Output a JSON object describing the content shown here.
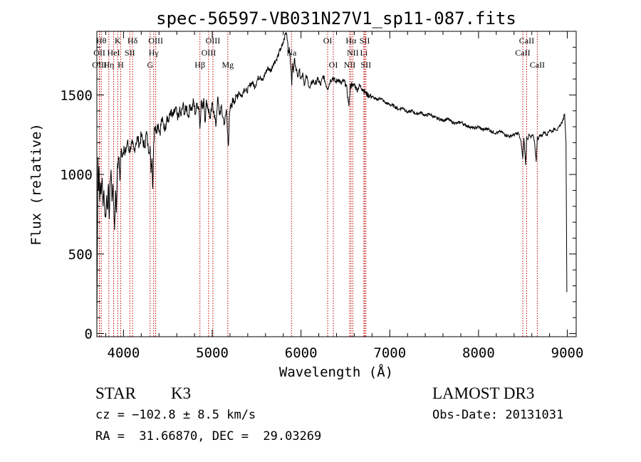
{
  "chart_data": {
    "type": "line",
    "title": "spec-56597-VB031N27V1_sp11-087.fits",
    "xlabel": "Wavelength (Å)",
    "ylabel": "Flux (relative)",
    "xlim": [
      3700,
      9100
    ],
    "ylim": [
      -20,
      1900
    ],
    "xticks": [
      4000,
      5000,
      6000,
      7000,
      8000,
      9000
    ],
    "yticks": [
      0,
      500,
      1000,
      1500
    ],
    "xtick_labels": [
      "4000",
      "5000",
      "6000",
      "7000",
      "8000",
      "9000"
    ],
    "ytick_labels": [
      "0",
      "500",
      "1000",
      "1500"
    ],
    "series": [
      {
        "x": [
          3700,
          3705,
          3712,
          3718,
          3725,
          3732,
          3740,
          3750,
          3760,
          3770,
          3780,
          3790,
          3800,
          3810,
          3820,
          3830,
          3840,
          3850,
          3860,
          3870,
          3880,
          3890,
          3900,
          3910,
          3920,
          3930,
          3940,
          3950,
          3960,
          3968,
          3975,
          3985,
          3995,
          4005,
          4015,
          4030,
          4045,
          4060,
          4080,
          4100,
          4120,
          4140,
          4160,
          4180,
          4200,
          4220,
          4240,
          4260,
          4280,
          4300,
          4310,
          4320,
          4330,
          4340,
          4350,
          4370,
          4390,
          4410,
          4430,
          4450,
          4470,
          4490,
          4510,
          4530,
          4550,
          4570,
          4590,
          4610,
          4630,
          4650,
          4670,
          4690,
          4710,
          4730,
          4750,
          4770,
          4790,
          4810,
          4830,
          4850,
          4861,
          4875,
          4890,
          4905,
          4920,
          4935,
          4950,
          4965,
          4980,
          5000,
          5020,
          5040,
          5060,
          5080,
          5100,
          5120,
          5140,
          5160,
          5175,
          5183,
          5190,
          5200,
          5220,
          5240,
          5260,
          5280,
          5300,
          5330,
          5360,
          5390,
          5420,
          5450,
          5480,
          5510,
          5540,
          5570,
          5600,
          5630,
          5660,
          5690,
          5720,
          5750,
          5770,
          5790,
          5810,
          5825,
          5840,
          5850,
          5860,
          5870,
          5880,
          5890,
          5896,
          5905,
          5915,
          5925,
          5940,
          5960,
          5980,
          6000,
          6020,
          6040,
          6060,
          6080,
          6100,
          6130,
          6160,
          6190,
          6220,
          6250,
          6280,
          6300,
          6330,
          6360,
          6390,
          6420,
          6450,
          6480,
          6510,
          6540,
          6555,
          6563,
          6570,
          6580,
          6600,
          6630,
          6660,
          6690,
          6720,
          6750,
          6800,
          6850,
          6900,
          6950,
          7000,
          7050,
          7100,
          7150,
          7200,
          7250,
          7300,
          7350,
          7400,
          7450,
          7500,
          7550,
          7600,
          7650,
          7700,
          7750,
          7800,
          7850,
          7900,
          7950,
          8000,
          8050,
          8100,
          8150,
          8200,
          8250,
          8300,
          8350,
          8400,
          8450,
          8480,
          8498,
          8510,
          8530,
          8542,
          8555,
          8570,
          8590,
          8610,
          8630,
          8650,
          8662,
          8675,
          8690,
          8710,
          8740,
          8770,
          8800,
          8830,
          8860,
          8890,
          8910,
          8930,
          8950,
          8970,
          8985,
          8995
        ],
        "y": [
          30,
          480,
          1110,
          900,
          1050,
          830,
          950,
          880,
          980,
          800,
          900,
          760,
          730,
          870,
          780,
          940,
          720,
          960,
          1030,
          830,
          940,
          800,
          650,
          900,
          760,
          1030,
          1070,
          1110,
          960,
          1080,
          1160,
          1120,
          1140,
          1180,
          1120,
          1160,
          1210,
          1150,
          1170,
          1190,
          1150,
          1200,
          1230,
          1180,
          1250,
          1200,
          1180,
          1270,
          1150,
          1180,
          1010,
          1100,
          910,
          1200,
          1300,
          1280,
          1320,
          1260,
          1350,
          1310,
          1290,
          1370,
          1330,
          1400,
          1360,
          1380,
          1420,
          1340,
          1400,
          1370,
          1440,
          1380,
          1430,
          1360,
          1440,
          1410,
          1460,
          1380,
          1450,
          1420,
          1290,
          1460,
          1410,
          1480,
          1330,
          1470,
          1420,
          1390,
          1350,
          1440,
          1400,
          1300,
          1480,
          1380,
          1420,
          1360,
          1320,
          1410,
          1250,
          1180,
          1330,
          1400,
          1440,
          1480,
          1460,
          1500,
          1520,
          1490,
          1540,
          1520,
          1560,
          1580,
          1550,
          1600,
          1620,
          1590,
          1640,
          1670,
          1650,
          1700,
          1720,
          1760,
          1790,
          1810,
          1850,
          1890,
          1880,
          1830,
          1760,
          1800,
          1700,
          1650,
          1560,
          1700,
          1640,
          1730,
          1680,
          1620,
          1660,
          1600,
          1640,
          1560,
          1620,
          1580,
          1540,
          1590,
          1570,
          1600,
          1560,
          1620,
          1570,
          1540,
          1590,
          1610,
          1580,
          1600,
          1570,
          1590,
          1560,
          1430,
          1570,
          1540,
          1580,
          1550,
          1570,
          1530,
          1560,
          1540,
          1520,
          1500,
          1490,
          1470,
          1480,
          1450,
          1440,
          1430,
          1410,
          1420,
          1390,
          1400,
          1380,
          1390,
          1370,
          1380,
          1360,
          1350,
          1340,
          1350,
          1330,
          1320,
          1330,
          1310,
          1300,
          1290,
          1300,
          1280,
          1290,
          1270,
          1260,
          1270,
          1250,
          1240,
          1250,
          1260,
          1200,
          1100,
          1230,
          1060,
          1240,
          1220,
          1250,
          1230,
          1250,
          1210,
          1080,
          1240,
          1220,
          1250,
          1240,
          1270,
          1250,
          1280,
          1270,
          1290,
          1280,
          1300,
          1320,
          1340,
          1380,
          1200,
          260
        ]
      }
    ],
    "lines": [
      {
        "x": 3750,
        "label": "Hθ",
        "row": 1
      },
      {
        "x": 3729,
        "label": "OII",
        "row": 2
      },
      {
        "x": 3729,
        "label": "OIII",
        "row": 3
      },
      {
        "x": 3835,
        "label": "Hη",
        "row": 3
      },
      {
        "x": 3889,
        "label": "HeI",
        "row": 2
      },
      {
        "x": 3934,
        "label": "K",
        "row": 1
      },
      {
        "x": 3968,
        "label": "H",
        "row": 3
      },
      {
        "x": 4072,
        "label": "SII",
        "row": 2
      },
      {
        "x": 4102,
        "label": "Hδ",
        "row": 1
      },
      {
        "x": 4300,
        "label": "G",
        "row": 3
      },
      {
        "x": 4340,
        "label": "Hγ",
        "row": 2
      },
      {
        "x": 4363,
        "label": "OIII",
        "row": 1
      },
      {
        "x": 4861,
        "label": "Hβ",
        "row": 3
      },
      {
        "x": 4959,
        "label": "OIII",
        "row": 2
      },
      {
        "x": 5007,
        "label": "OIII",
        "row": 1
      },
      {
        "x": 5175,
        "label": "Mg",
        "row": 3
      },
      {
        "x": 5893,
        "label": "Na",
        "row": 2
      },
      {
        "x": 6300,
        "label": "OI",
        "row": 1
      },
      {
        "x": 6364,
        "label": "OI",
        "row": 3
      },
      {
        "x": 6548,
        "label": "NII",
        "row": 3
      },
      {
        "x": 6563,
        "label": "Hα",
        "row": 1
      },
      {
        "x": 6583,
        "label": "NII",
        "row": 2
      },
      {
        "x": 6708,
        "label": "Li",
        "row": 2
      },
      {
        "x": 6717,
        "label": "SII",
        "row": 1
      },
      {
        "x": 6731,
        "label": "SII",
        "row": 3
      },
      {
        "x": 8498,
        "label": "CaII",
        "row": 2
      },
      {
        "x": 8542,
        "label": "CaII",
        "row": 1
      },
      {
        "x": 8662,
        "label": "CaII",
        "row": 3
      }
    ]
  },
  "info": {
    "object_class": "STAR",
    "subclass": "K3",
    "survey": "LAMOST DR3",
    "redshift": "cz = −102.8 ± 8.5 km/s",
    "obs_date": "Obs-Date: 20131031",
    "coords": "RA =  31.66870, DEC =  29.03269"
  },
  "colors": {
    "spectrum": "#000000",
    "line_markers": "#c00000",
    "axes": "#000000"
  }
}
